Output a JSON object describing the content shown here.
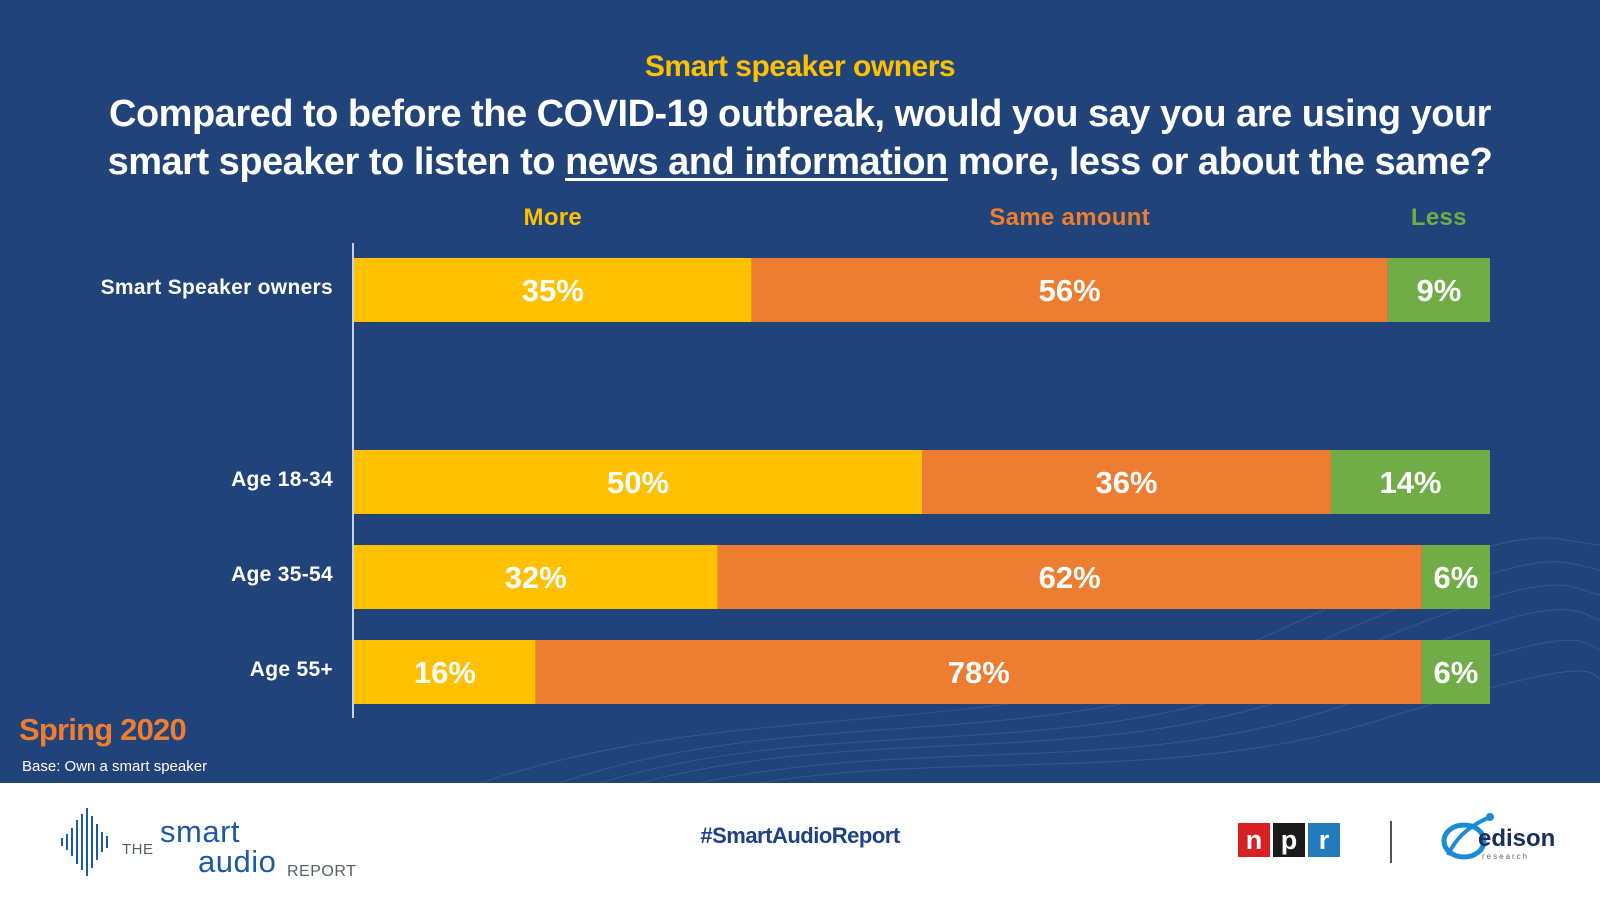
{
  "header": {
    "subtitle": "Smart speaker owners",
    "title_before": "Compared to before the COVID-19 outbreak, would you say you are using your smart speaker to listen to ",
    "title_underlined": "news and information",
    "title_after": " more, less or about the same?"
  },
  "chart_data": {
    "type": "bar",
    "orientation": "horizontal",
    "stacked": true,
    "grid": false,
    "legend_position": "top",
    "categories": [
      "Smart Speaker owners",
      "Age 18-34",
      "Age 35-54",
      "Age 55+"
    ],
    "series": [
      {
        "name": "More",
        "color": "#ffc000",
        "values": [
          35,
          50,
          32,
          16
        ],
        "labels": [
          "35%",
          "50%",
          "32%",
          "16%"
        ]
      },
      {
        "name": "Same amount",
        "color": "#ed7d31",
        "values": [
          56,
          36,
          62,
          78
        ],
        "labels": [
          "56%",
          "36%",
          "62%",
          "78%"
        ]
      },
      {
        "name": "Less",
        "color": "#70ad47",
        "values": [
          9,
          14,
          6,
          6
        ],
        "labels": [
          "9%",
          "14%",
          "6%",
          "6%"
        ]
      }
    ],
    "xlim": [
      0,
      100
    ]
  },
  "notes": {
    "season": "Spring 2020",
    "base": "Base: Own a smart speaker"
  },
  "footer": {
    "hashtag": "#SmartAudioReport",
    "logo_the": "THE",
    "logo_smart": "smart",
    "logo_audio": "audio",
    "logo_report": "REPORT",
    "npr_letters": [
      "n",
      "p",
      "r"
    ],
    "edison_word": "edison",
    "edison_sub": "research"
  }
}
